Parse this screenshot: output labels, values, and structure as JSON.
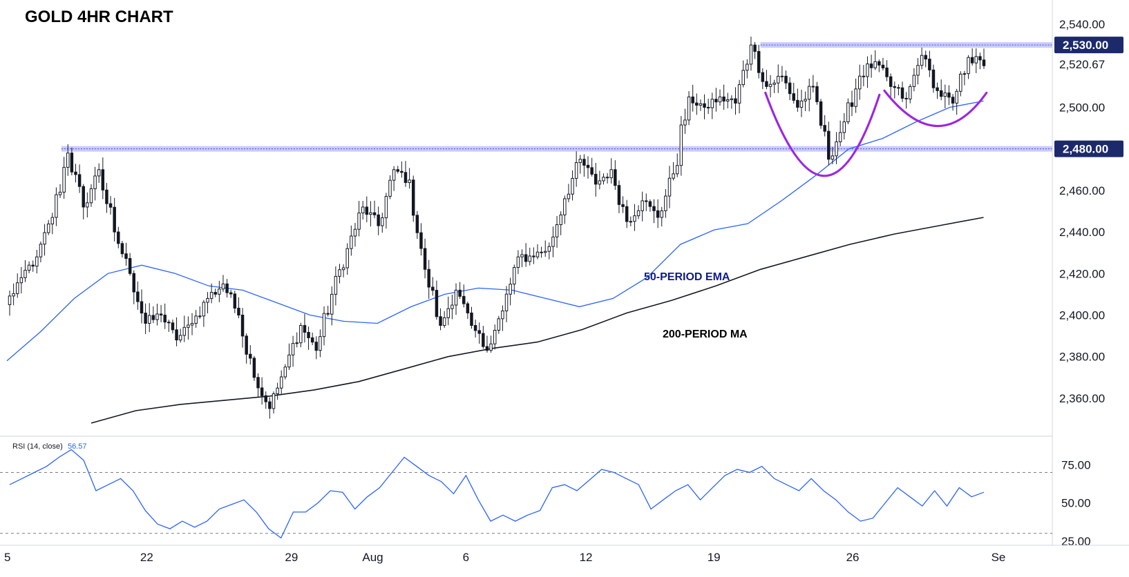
{
  "chart_data": {
    "type": "candlestick",
    "title": "GOLD 4HR CHART",
    "symbol": "GOLD",
    "timeframe": "4H",
    "x_ticks": [
      "5",
      "22",
      "29",
      "Aug",
      "6",
      "12",
      "19",
      "26",
      "Se"
    ],
    "y_ticks": [
      "2,360.00",
      "2,380.00",
      "2,400.00",
      "2,420.00",
      "2,440.00",
      "2,460.00",
      "2,480.00",
      "2,500.00",
      "2,520.67",
      "2,540.00"
    ],
    "ylim": [
      2347,
      2558
    ],
    "current_price": "2,520.67",
    "current_price_value": 2520.67,
    "levels": [
      {
        "label": "2,530.00",
        "value": 2530
      },
      {
        "label": "2,480.00",
        "value": 2480
      }
    ],
    "candle_anchors": [
      [
        2405,
        2418
      ],
      [
        2418,
        2428
      ],
      [
        2428,
        2447
      ],
      [
        2447,
        2478
      ],
      [
        2478,
        2452
      ],
      [
        2452,
        2470
      ],
      [
        2470,
        2440
      ],
      [
        2440,
        2420
      ],
      [
        2420,
        2396
      ],
      [
        2396,
        2400
      ],
      [
        2400,
        2388
      ],
      [
        2388,
        2396
      ],
      [
        2396,
        2408
      ],
      [
        2408,
        2415
      ],
      [
        2415,
        2400
      ],
      [
        2400,
        2370
      ],
      [
        2370,
        2355
      ],
      [
        2355,
        2375
      ],
      [
        2375,
        2395
      ],
      [
        2395,
        2383
      ],
      [
        2383,
        2410
      ],
      [
        2410,
        2432
      ],
      [
        2432,
        2452
      ],
      [
        2452,
        2443
      ],
      [
        2443,
        2470
      ],
      [
        2470,
        2465
      ],
      [
        2465,
        2422
      ],
      [
        2422,
        2395
      ],
      [
        2395,
        2412
      ],
      [
        2412,
        2395
      ],
      [
        2395,
        2383
      ],
      [
        2383,
        2402
      ],
      [
        2402,
        2428
      ],
      [
        2428,
        2428
      ],
      [
        2428,
        2433
      ],
      [
        2433,
        2456
      ],
      [
        2456,
        2475
      ],
      [
        2475,
        2463
      ],
      [
        2463,
        2470
      ],
      [
        2470,
        2445
      ],
      [
        2445,
        2455
      ],
      [
        2455,
        2447
      ],
      [
        2447,
        2468
      ],
      [
        2468,
        2505
      ],
      [
        2505,
        2500
      ],
      [
        2500,
        2505
      ],
      [
        2505,
        2502
      ],
      [
        2502,
        2530
      ],
      [
        2530,
        2510
      ],
      [
        2510,
        2515
      ],
      [
        2515,
        2500
      ],
      [
        2500,
        2510
      ],
      [
        2510,
        2475
      ],
      [
        2475,
        2493
      ],
      [
        2493,
        2515
      ],
      [
        2515,
        2522
      ],
      [
        2522,
        2510
      ],
      [
        2510,
        2504
      ],
      [
        2504,
        2525
      ],
      [
        2525,
        2508
      ],
      [
        2508,
        2502
      ],
      [
        2502,
        2524
      ],
      [
        2524,
        2520
      ]
    ],
    "series": [
      {
        "name": "50-PERIOD EMA",
        "color": "#2962ff",
        "values": [
          2378,
          2392,
          2408,
          2420,
          2424,
          2420,
          2414,
          2412,
          2406,
          2400,
          2397,
          2396,
          2404,
          2410,
          2413,
          2412,
          2408,
          2404,
          2408,
          2418,
          2434,
          2441,
          2444,
          2455,
          2467,
          2480,
          2485,
          2493,
          2500,
          2503
        ]
      },
      {
        "name": "200-PERIOD MA",
        "color": "#131722",
        "values": [
          2348,
          2354,
          2357,
          2359,
          2361,
          2364,
          2368,
          2374,
          2380,
          2384,
          2387,
          2393,
          2401,
          2407,
          2414,
          2422,
          2428,
          2434,
          2439,
          2443,
          2447
        ]
      }
    ],
    "annotations": [
      {
        "text": "50-PERIOD EMA",
        "color": "#0d1a8c"
      },
      {
        "text": "200-PERIOD MA",
        "color": "#000000"
      }
    ],
    "pattern_color": "#9c27e0",
    "colors": {
      "bull": "#ffffff",
      "bear": "#131722",
      "level_fill": "#b7b9f5",
      "level_line": "#4949f0",
      "badge": "#1c2a6c"
    },
    "rsi": {
      "label": "RSI (14, close)",
      "value": "56.57",
      "color": "#2962ff",
      "levels": [
        70,
        30
      ],
      "ylim": [
        24,
        92
      ],
      "y_ticks": [
        "75.00",
        "50.00",
        "25.00"
      ],
      "values": [
        62,
        66,
        70,
        74,
        80,
        85,
        78,
        58,
        62,
        66,
        58,
        45,
        36,
        33,
        38,
        34,
        38,
        46,
        49,
        52,
        44,
        33,
        27,
        44,
        44,
        50,
        58,
        57,
        46,
        54,
        60,
        70,
        80,
        74,
        68,
        64,
        56,
        68,
        52,
        38,
        42,
        38,
        42,
        45,
        60,
        62,
        58,
        65,
        72,
        70,
        66,
        62,
        46,
        52,
        58,
        62,
        52,
        60,
        68,
        72,
        70,
        74,
        66,
        62,
        58,
        66,
        58,
        52,
        44,
        38,
        40,
        50,
        60,
        54,
        48,
        58,
        48,
        60,
        54,
        57
      ]
    }
  }
}
